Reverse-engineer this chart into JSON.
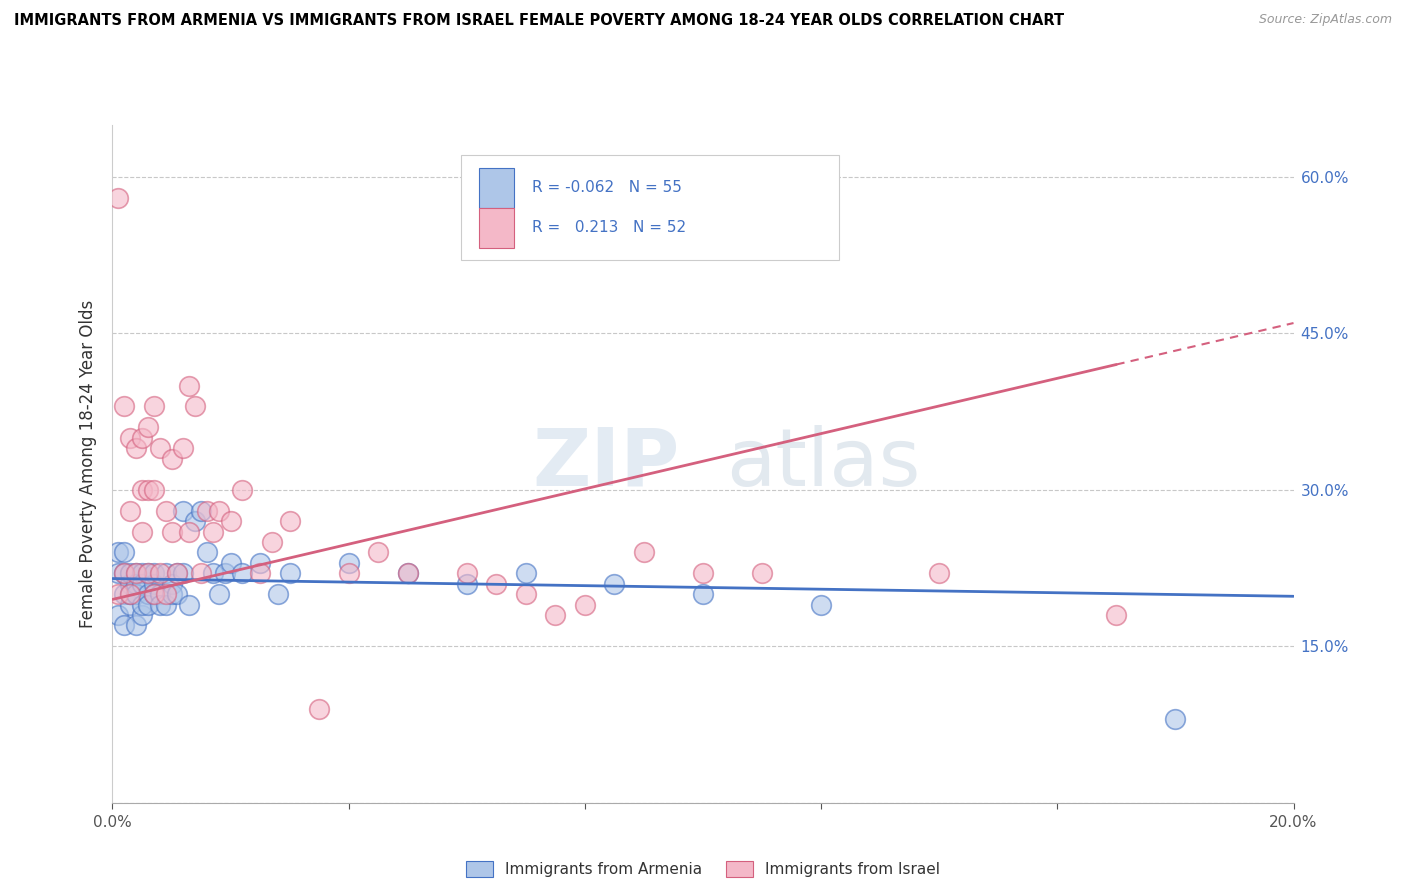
{
  "title": "IMMIGRANTS FROM ARMENIA VS IMMIGRANTS FROM ISRAEL FEMALE POVERTY AMONG 18-24 YEAR OLDS CORRELATION CHART",
  "source": "Source: ZipAtlas.com",
  "ylabel": "Female Poverty Among 18-24 Year Olds",
  "x_min": 0.0,
  "x_max": 0.2,
  "y_min": 0.0,
  "y_max": 0.65,
  "y_ticks": [
    0.0,
    0.15,
    0.3,
    0.45,
    0.6
  ],
  "y_tick_labels_right": [
    "",
    "15.0%",
    "30.0%",
    "45.0%",
    "60.0%"
  ],
  "armenia_color": "#aec6e8",
  "israel_color": "#f4b8c8",
  "armenia_edge_color": "#4472c4",
  "israel_edge_color": "#d4607e",
  "armenia_line_color": "#4472c4",
  "israel_line_color": "#d4607e",
  "watermark": "ZIPatlas",
  "legend_R_armenia": "-0.062",
  "legend_N_armenia": "55",
  "legend_R_israel": "0.213",
  "legend_N_israel": "52",
  "armenia_x": [
    0.001,
    0.001,
    0.001,
    0.002,
    0.002,
    0.002,
    0.002,
    0.003,
    0.003,
    0.003,
    0.003,
    0.004,
    0.004,
    0.004,
    0.004,
    0.005,
    0.005,
    0.005,
    0.005,
    0.006,
    0.006,
    0.006,
    0.007,
    0.007,
    0.007,
    0.008,
    0.008,
    0.009,
    0.009,
    0.01,
    0.01,
    0.011,
    0.011,
    0.012,
    0.012,
    0.013,
    0.014,
    0.015,
    0.016,
    0.017,
    0.018,
    0.019,
    0.02,
    0.022,
    0.025,
    0.028,
    0.03,
    0.04,
    0.05,
    0.06,
    0.07,
    0.085,
    0.1,
    0.12,
    0.18
  ],
  "armenia_y": [
    0.22,
    0.18,
    0.24,
    0.2,
    0.24,
    0.17,
    0.22,
    0.21,
    0.19,
    0.22,
    0.2,
    0.22,
    0.17,
    0.21,
    0.2,
    0.22,
    0.18,
    0.21,
    0.19,
    0.22,
    0.2,
    0.19,
    0.21,
    0.2,
    0.22,
    0.2,
    0.19,
    0.22,
    0.19,
    0.21,
    0.2,
    0.22,
    0.2,
    0.28,
    0.22,
    0.19,
    0.27,
    0.28,
    0.24,
    0.22,
    0.2,
    0.22,
    0.23,
    0.22,
    0.23,
    0.2,
    0.22,
    0.23,
    0.22,
    0.21,
    0.22,
    0.21,
    0.2,
    0.19,
    0.08
  ],
  "israel_x": [
    0.001,
    0.001,
    0.002,
    0.002,
    0.003,
    0.003,
    0.003,
    0.004,
    0.004,
    0.005,
    0.005,
    0.005,
    0.006,
    0.006,
    0.006,
    0.007,
    0.007,
    0.007,
    0.008,
    0.008,
    0.009,
    0.009,
    0.01,
    0.01,
    0.011,
    0.012,
    0.013,
    0.013,
    0.014,
    0.015,
    0.016,
    0.017,
    0.018,
    0.02,
    0.022,
    0.025,
    0.027,
    0.03,
    0.035,
    0.04,
    0.045,
    0.05,
    0.06,
    0.065,
    0.07,
    0.075,
    0.08,
    0.09,
    0.1,
    0.11,
    0.14,
    0.17
  ],
  "israel_y": [
    0.58,
    0.2,
    0.38,
    0.22,
    0.28,
    0.35,
    0.2,
    0.34,
    0.22,
    0.3,
    0.26,
    0.35,
    0.22,
    0.3,
    0.36,
    0.2,
    0.3,
    0.38,
    0.34,
    0.22,
    0.28,
    0.2,
    0.26,
    0.33,
    0.22,
    0.34,
    0.26,
    0.4,
    0.38,
    0.22,
    0.28,
    0.26,
    0.28,
    0.27,
    0.3,
    0.22,
    0.25,
    0.27,
    0.09,
    0.22,
    0.24,
    0.22,
    0.22,
    0.21,
    0.2,
    0.18,
    0.19,
    0.24,
    0.22,
    0.22,
    0.22,
    0.18
  ]
}
